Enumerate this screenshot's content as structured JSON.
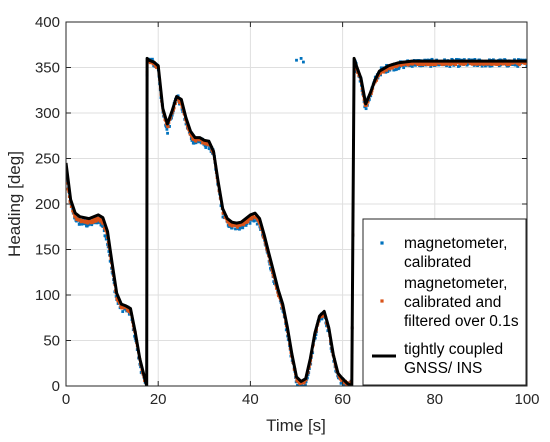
{
  "chart_data": {
    "type": "scatter",
    "title": "",
    "xlabel": "Time [s]",
    "ylabel": "Heading [deg]",
    "xlim": [
      0,
      100
    ],
    "ylim": [
      0,
      400
    ],
    "xticks": [
      0,
      20,
      40,
      60,
      80,
      100
    ],
    "yticks": [
      0,
      50,
      100,
      150,
      200,
      250,
      300,
      350,
      400
    ],
    "xtick_labels": [
      "0",
      "20",
      "40",
      "60",
      "80",
      "100"
    ],
    "ytick_labels": [
      "0",
      "50",
      "100",
      "150",
      "200",
      "250",
      "300",
      "350",
      "400"
    ],
    "grid": true,
    "legend_location": "bottom-right",
    "series": [
      {
        "name": "magnetometer, calibrated",
        "legend_lines": [
          "magnetometer,",
          "calibrated"
        ],
        "style": "dots",
        "color": "#0072BD",
        "noise": 4,
        "extra_points": [
          [
            50,
            358
          ],
          [
            51,
            360
          ],
          [
            51.5,
            356
          ],
          [
            66,
            2
          ],
          [
            70,
            2
          ],
          [
            75,
            1
          ],
          [
            80,
            2
          ],
          [
            85,
            1
          ],
          [
            90,
            2
          ],
          [
            95,
            1
          ],
          [
            99,
            2
          ]
        ],
        "x": [
          0,
          1,
          2,
          3,
          5,
          7,
          8,
          9,
          10,
          11,
          12,
          13,
          14,
          15,
          16,
          17,
          17.5,
          17.6,
          18,
          19,
          20,
          21,
          22,
          23,
          24,
          25,
          26,
          27,
          28,
          29,
          30,
          31,
          32,
          33,
          34,
          35,
          36,
          37,
          38,
          39,
          40,
          41,
          42,
          43,
          44,
          45,
          46,
          47,
          48,
          49,
          50,
          51,
          52,
          53,
          54,
          55,
          56,
          57,
          58,
          59,
          60,
          61,
          62,
          62.5,
          63,
          64,
          65,
          66,
          67,
          68,
          70,
          72,
          75,
          80,
          85,
          90,
          95,
          100
        ],
        "y": [
          238,
          200,
          185,
          180,
          178,
          183,
          176,
          160,
          125,
          95,
          86,
          85,
          80,
          55,
          25,
          5,
          0,
          358,
          358,
          355,
          350,
          300,
          280,
          300,
          318,
          310,
          290,
          275,
          268,
          270,
          266,
          265,
          255,
          220,
          190,
          180,
          175,
          175,
          176,
          180,
          182,
          185,
          178,
          160,
          140,
          120,
          100,
          85,
          60,
          30,
          5,
          2,
          5,
          25,
          55,
          75,
          80,
          60,
          30,
          10,
          5,
          0,
          2,
          356,
          350,
          335,
          305,
          320,
          335,
          345,
          350,
          352,
          355,
          355,
          355,
          355,
          355,
          355
        ]
      },
      {
        "name": "magnetometer, calibrated and filtered over 0.1s",
        "legend_lines": [
          "magnetometer,",
          "calibrated and",
          "filtered over 0.1s"
        ],
        "style": "dots",
        "color": "#D95319",
        "noise": 2,
        "x": [
          0,
          1,
          2,
          3,
          5,
          7,
          8,
          9,
          10,
          11,
          12,
          13,
          14,
          15,
          16,
          17,
          17.5,
          17.6,
          18,
          19,
          20,
          21,
          22,
          23,
          24,
          25,
          26,
          27,
          28,
          29,
          30,
          31,
          32,
          33,
          34,
          35,
          36,
          37,
          38,
          39,
          40,
          41,
          42,
          43,
          44,
          45,
          46,
          47,
          48,
          49,
          50,
          51,
          52,
          53,
          54,
          55,
          56,
          57,
          58,
          59,
          60,
          61,
          62,
          62.5,
          63,
          64,
          65,
          66,
          67,
          68,
          70,
          72,
          75,
          80,
          85,
          90,
          95,
          100
        ],
        "y": [
          232,
          200,
          186,
          182,
          180,
          184,
          180,
          165,
          130,
          98,
          88,
          86,
          82,
          58,
          28,
          8,
          2,
          357,
          357,
          355,
          350,
          302,
          284,
          300,
          316,
          312,
          292,
          277,
          270,
          270,
          268,
          266,
          256,
          222,
          192,
          181,
          177,
          176,
          177,
          181,
          184,
          186,
          180,
          162,
          142,
          122,
          102,
          87,
          62,
          32,
          8,
          3,
          6,
          27,
          56,
          75,
          80,
          62,
          32,
          12,
          6,
          2,
          3,
          355,
          350,
          335,
          307,
          320,
          334,
          344,
          350,
          353,
          355,
          355,
          355,
          355,
          355,
          355
        ]
      },
      {
        "name": "tightly coupled GNSS/ INS",
        "legend_lines": [
          "tightly coupled",
          "GNSS/ INS"
        ],
        "style": "line",
        "color": "#000000",
        "x": [
          0,
          1,
          2,
          3,
          5,
          7,
          8,
          9,
          10,
          11,
          12,
          13,
          14,
          15,
          16,
          17,
          17.5,
          17.6,
          18,
          19,
          20,
          21,
          22,
          23,
          24,
          25,
          26,
          27,
          28,
          29,
          30,
          31,
          32,
          33,
          34,
          35,
          36,
          37,
          38,
          39,
          40,
          41,
          42,
          43,
          44,
          45,
          46,
          47,
          48,
          49,
          50,
          51,
          52,
          53,
          54,
          55,
          56,
          57,
          58,
          59,
          60,
          61,
          62,
          62.5,
          63,
          64,
          65,
          66,
          67,
          68,
          70,
          72,
          75,
          80,
          85,
          90,
          95,
          100
        ],
        "y": [
          245,
          205,
          190,
          186,
          184,
          188,
          185,
          170,
          135,
          102,
          90,
          88,
          85,
          60,
          30,
          10,
          0,
          360,
          358,
          356,
          352,
          305,
          288,
          302,
          318,
          315,
          295,
          280,
          273,
          273,
          270,
          269,
          258,
          225,
          195,
          184,
          180,
          179,
          180,
          184,
          188,
          190,
          184,
          166,
          146,
          126,
          106,
          90,
          65,
          35,
          10,
          5,
          8,
          30,
          58,
          77,
          82,
          64,
          34,
          14,
          8,
          3,
          0,
          360,
          352,
          338,
          310,
          322,
          336,
          346,
          352,
          355,
          357,
          357,
          357,
          357,
          357,
          357
        ]
      }
    ]
  }
}
